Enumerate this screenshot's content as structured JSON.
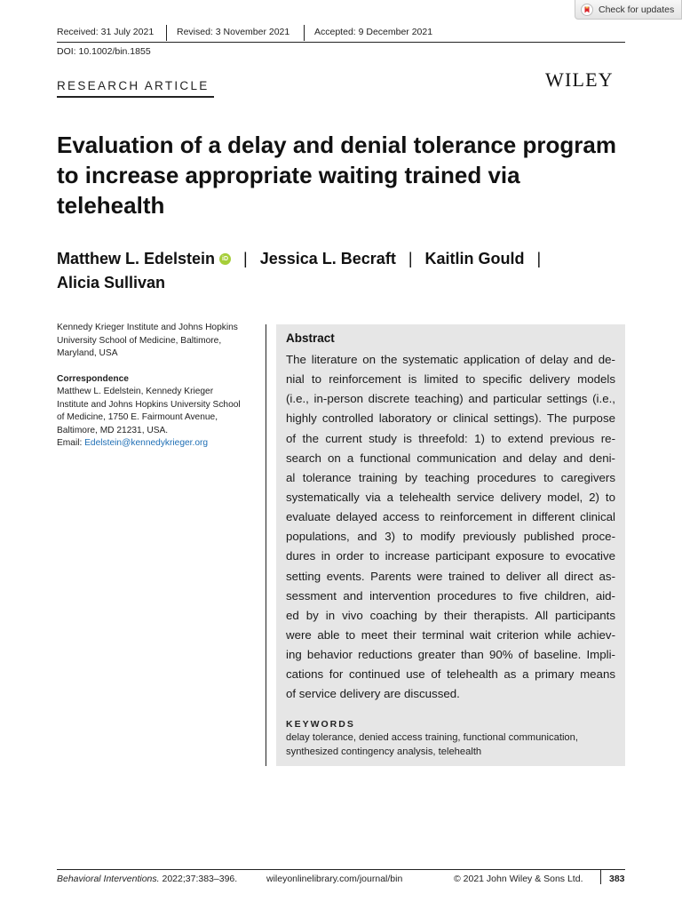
{
  "check_updates": {
    "label": "Check for updates"
  },
  "history": {
    "received": "Received: 31 July 2021",
    "revised": "Revised: 3 November 2021",
    "accepted": "Accepted: 9 December 2021"
  },
  "doi": "DOI: 10.1002/bin.1855",
  "article_type": "RESEARCH ARTICLE",
  "publisher_logo": "WILEY",
  "title_lines": [
    "Evaluation of a delay and denial tolerance program",
    "to increase appropriate waiting trained via",
    "telehealth"
  ],
  "authors": [
    "Matthew L. Edelstein",
    "Jessica L. Becraft",
    "Kaitlin Gould",
    "Alicia Sullivan"
  ],
  "author_separator": "|",
  "orcid_badge": "iD",
  "affiliation_lines": [
    "Kennedy Krieger Institute and Johns Hopkins",
    "University School of Medicine, Baltimore,",
    "Maryland, USA"
  ],
  "correspondence": {
    "label": "Correspondence",
    "lines": [
      "Matthew L. Edelstein, Kennedy Krieger",
      "Institute and Johns Hopkins University School",
      "of Medicine, 1750 E. Fairmount Avenue,",
      "Baltimore, MD 21231, USA."
    ],
    "email_label": "Email: ",
    "email": "Edelstein@kennedykrieger.org"
  },
  "abstract": {
    "heading": "Abstract",
    "lines": [
      "The literature on the systematic application of delay and de-",
      "nial to reinforcement is limited to specific delivery models",
      "(i.e., in-person discrete teaching) and particular settings (i.e.,",
      "highly controlled laboratory or clinical settings). The purpose",
      "of the current study is threefold: 1) to extend previous re-",
      "search on a functional communication and delay and deni-",
      "al tolerance training by teaching procedures to caregivers",
      "systematically via a telehealth service delivery model, 2) to",
      "evaluate delayed access to reinforcement in different clinical",
      "populations, and 3) to modify previously published proce-",
      "dures in order to increase participant exposure to evocative",
      "setting events. Parents were trained to deliver all direct as-",
      "sessment and intervention procedures to five children, aid-",
      "ed by in vivo coaching by their therapists. All participants",
      "were able to meet their terminal wait criterion while achiev-",
      "ing behavior reductions greater than 90% of baseline. Impli-",
      "cations for continued use of telehealth as a primary means",
      "of service delivery are discussed."
    ]
  },
  "keywords": {
    "heading": "KEYWORDS",
    "lines": [
      "delay tolerance, denied access training, functional communication,",
      "synthesized contingency analysis, telehealth"
    ]
  },
  "footer": {
    "journal_name": "Behavioral Interventions.",
    "citation": " 2022;37:383–396.",
    "url": "wileyonlinelibrary.com/journal/bin",
    "copyright": "© 2021 John Wiley & Sons Ltd.",
    "page": "383"
  }
}
